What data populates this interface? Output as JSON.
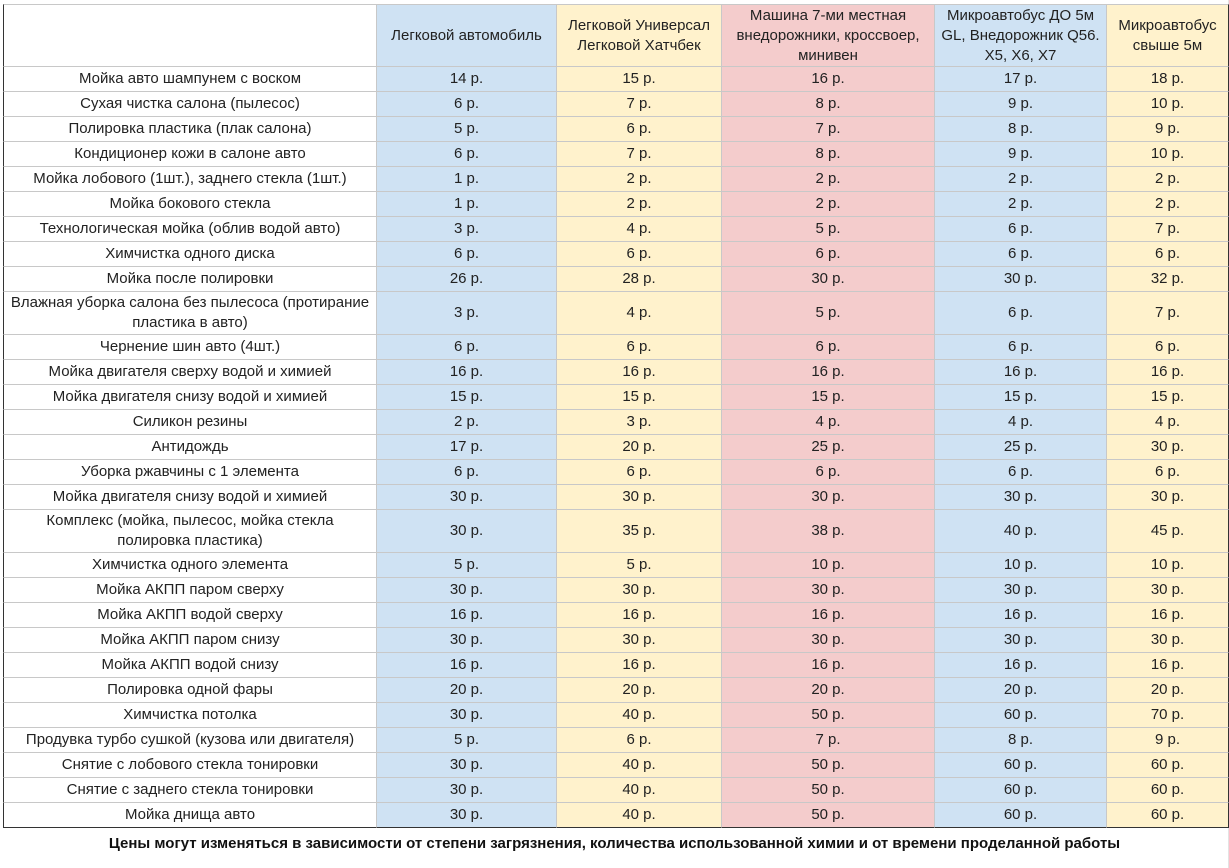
{
  "table": {
    "columns": [
      "Легковой автомобиль",
      "Легковой Универсал Легковой Хатчбек",
      "Машина 7-ми местная внедорожники, кроссвоер, минивен",
      "Микроавтобус ДО 5м GL, Внедорожник Q56. X5, X6, X7",
      "Микроавтобус свыше 5м"
    ],
    "rows": [
      {
        "service": "Мойка авто шампунем с воском",
        "prices": [
          "14 р.",
          "15 р.",
          "16 р.",
          "17 р.",
          "18 р."
        ]
      },
      {
        "service": "Сухая чистка салона (пылесос)",
        "prices": [
          "6 р.",
          "7 р.",
          "8 р.",
          "9 р.",
          "10 р."
        ]
      },
      {
        "service": "Полировка пластика (плак салона)",
        "prices": [
          "5 р.",
          "6 р.",
          "7 р.",
          "8 р.",
          "9 р."
        ]
      },
      {
        "service": "Кондиционер кожи в салоне авто",
        "prices": [
          "6 р.",
          "7 р.",
          "8 р.",
          "9 р.",
          "10 р."
        ]
      },
      {
        "service": "Мойка лобового (1шт.), заднего стекла (1шт.)",
        "prices": [
          "1 р.",
          "2 р.",
          "2 р.",
          "2 р.",
          "2 р."
        ]
      },
      {
        "service": "Мойка бокового стекла",
        "prices": [
          "1 р.",
          "2 р.",
          "2 р.",
          "2 р.",
          "2 р."
        ]
      },
      {
        "service": "Технологическая мойка (облив водой авто)",
        "prices": [
          "3 р.",
          "4 р.",
          "5 р.",
          "6 р.",
          "7 р."
        ]
      },
      {
        "service": "Химчистка одного диска",
        "prices": [
          "6 р.",
          "6 р.",
          "6 р.",
          "6 р.",
          "6 р."
        ]
      },
      {
        "service": "Мойка после полировки",
        "prices": [
          "26 р.",
          "28 р.",
          "30 р.",
          "30 р.",
          "32 р."
        ]
      },
      {
        "service": "Влажная уборка салона без пылесоса (протирание пластика в авто)",
        "prices": [
          "3 р.",
          "4 р.",
          "5 р.",
          "6 р.",
          "7 р."
        ]
      },
      {
        "service": "Чернение шин авто (4шт.)",
        "prices": [
          "6 р.",
          "6 р.",
          "6 р.",
          "6 р.",
          "6 р."
        ]
      },
      {
        "service": "Мойка двигателя сверху водой и химией",
        "prices": [
          "16 р.",
          "16 р.",
          "16 р.",
          "16 р.",
          "16 р."
        ]
      },
      {
        "service": "Мойка двигателя снизу водой и химией",
        "prices": [
          "15 р.",
          "15 р.",
          "15 р.",
          "15 р.",
          "15 р."
        ]
      },
      {
        "service": "Силикон резины",
        "prices": [
          "2 р.",
          "3 р.",
          "4 р.",
          "4 р.",
          "4 р."
        ]
      },
      {
        "service": "Антидождь",
        "prices": [
          "17 р.",
          "20 р.",
          "25 р.",
          "25 р.",
          "30 р."
        ]
      },
      {
        "service": "Уборка ржавчины с 1 элемента",
        "prices": [
          "6 р.",
          "6 р.",
          "6 р.",
          "6 р.",
          "6 р."
        ]
      },
      {
        "service": "Мойка двигателя снизу водой и химией",
        "prices": [
          "30 р.",
          "30 р.",
          "30 р.",
          "30 р.",
          "30 р."
        ]
      },
      {
        "service": "Комплекс (мойка, пылесос, мойка стекла полировка пластика)",
        "prices": [
          "30 р.",
          "35 р.",
          "38 р.",
          "40 р.",
          "45 р."
        ]
      },
      {
        "service": "Химчистка одного элемента",
        "prices": [
          "5 р.",
          "5 р.",
          "10 р.",
          "10 р.",
          "10 р."
        ]
      },
      {
        "service": "Мойка АКПП паром сверху",
        "prices": [
          "30 р.",
          "30 р.",
          "30 р.",
          "30 р.",
          "30 р."
        ]
      },
      {
        "service": "Мойка АКПП водой сверху",
        "prices": [
          "16 р.",
          "16 р.",
          "16 р.",
          "16 р.",
          "16 р."
        ]
      },
      {
        "service": "Мойка АКПП паром снизу",
        "prices": [
          "30 р.",
          "30 р.",
          "30 р.",
          "30 р.",
          "30 р."
        ]
      },
      {
        "service": "Мойка АКПП водой снизу",
        "prices": [
          "16 р.",
          "16 р.",
          "16 р.",
          "16 р.",
          "16 р."
        ]
      },
      {
        "service": "Полировка одной фары",
        "prices": [
          "20 р.",
          "20 р.",
          "20 р.",
          "20 р.",
          "20 р."
        ]
      },
      {
        "service": "Химчистка потолка",
        "prices": [
          "30 р.",
          "40 р.",
          "50 р.",
          "60 р.",
          "70 р."
        ]
      },
      {
        "service": "Продувка турбо сушкой (кузова или двигателя)",
        "prices": [
          "5 р.",
          "6 р.",
          "7 р.",
          "8 р.",
          "9 р."
        ]
      },
      {
        "service": "Снятие с лобового стекла тонировки",
        "prices": [
          "30 р.",
          "40 р.",
          "50 р.",
          "60 р.",
          "60 р."
        ]
      },
      {
        "service": "Снятие с заднего стекла тонировки",
        "prices": [
          "30 р.",
          "40 р.",
          "50 р.",
          "60 р.",
          "60 р."
        ]
      },
      {
        "service": "Мойка днища авто",
        "prices": [
          "30 р.",
          "40 р.",
          "50 р.",
          "60 р.",
          "60 р."
        ]
      }
    ]
  },
  "footnote": "Цены могут изменяться в зависимости от степени загрязнения, количества использованной химии и от времени проделанной работы",
  "colors": {
    "col_blue": "#cfe2f3",
    "col_yellow": "#fff2cc",
    "col_pink": "#f4cccc"
  }
}
